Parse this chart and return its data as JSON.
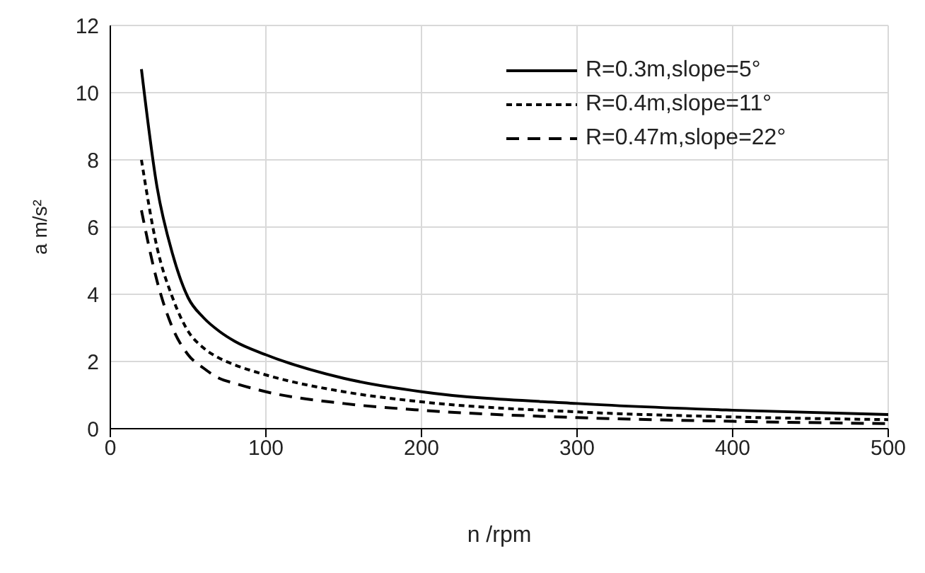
{
  "chart_data": {
    "type": "line",
    "xlabel": "n /rpm",
    "ylabel": "a m/s²",
    "x": [
      20,
      30,
      40,
      50,
      60,
      70,
      80,
      100,
      150,
      200,
      300,
      400,
      500
    ],
    "series": [
      {
        "name": "R=0.3m,slope=5°",
        "color": "#000000",
        "line_style": "solid",
        "values": [
          10.7,
          7.2,
          5.2,
          3.9,
          3.3,
          2.9,
          2.6,
          2.2,
          1.5,
          1.1,
          0.75,
          0.55,
          0.42
        ]
      },
      {
        "name": "R=0.4m,slope=11°",
        "color": "#000000",
        "line_style": "dotted",
        "values": [
          8.0,
          5.4,
          3.9,
          2.9,
          2.4,
          2.1,
          1.9,
          1.6,
          1.1,
          0.8,
          0.5,
          0.35,
          0.27
        ]
      },
      {
        "name": "R=0.47m,slope=22°",
        "color": "#000000",
        "line_style": "dashed",
        "values": [
          6.5,
          4.4,
          3.0,
          2.2,
          1.8,
          1.5,
          1.35,
          1.1,
          0.75,
          0.55,
          0.33,
          0.22,
          0.15
        ]
      }
    ],
    "xlim": [
      0,
      500
    ],
    "xticks": [
      0,
      100,
      200,
      300,
      400,
      500
    ],
    "ylim": [
      0,
      12
    ],
    "yticks": [
      0,
      2,
      4,
      6,
      8,
      10,
      12
    ],
    "grid": true,
    "legend": "top right",
    "marker": "none"
  }
}
